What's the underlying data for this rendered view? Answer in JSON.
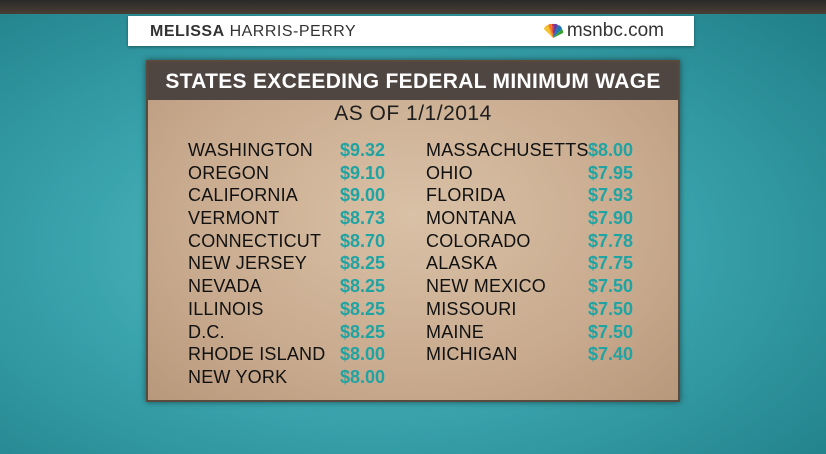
{
  "banner": {
    "show_first": "MELISSA",
    "show_last": "HARRIS-PERRY",
    "network": "msnbc.com"
  },
  "panel": {
    "title": "STATES EXCEEDING FEDERAL MINIMUM WAGE",
    "subtitle": "AS OF 1/1/2014",
    "left": [
      {
        "state": "WASHINGTON",
        "wage": "$9.32"
      },
      {
        "state": "OREGON",
        "wage": "$9.10"
      },
      {
        "state": "CALIFORNIA",
        "wage": "$9.00"
      },
      {
        "state": "VERMONT",
        "wage": "$8.73"
      },
      {
        "state": "CONNECTICUT",
        "wage": "$8.70"
      },
      {
        "state": "NEW JERSEY",
        "wage": "$8.25"
      },
      {
        "state": "NEVADA",
        "wage": "$8.25"
      },
      {
        "state": "ILLINOIS",
        "wage": "$8.25"
      },
      {
        "state": "D.C.",
        "wage": "$8.25"
      },
      {
        "state": "RHODE ISLAND",
        "wage": "$8.00"
      },
      {
        "state": "NEW YORK",
        "wage": "$8.00"
      }
    ],
    "right": [
      {
        "state": "MASSACHUSETTS",
        "wage": "$8.00"
      },
      {
        "state": "OHIO",
        "wage": "$7.95"
      },
      {
        "state": "FLORIDA",
        "wage": "$7.93"
      },
      {
        "state": "MONTANA",
        "wage": "$7.90"
      },
      {
        "state": "COLORADO",
        "wage": "$7.78"
      },
      {
        "state": "ALASKA",
        "wage": "$7.75"
      },
      {
        "state": "NEW MEXICO",
        "wage": "$7.50"
      },
      {
        "state": "MISSOURI",
        "wage": "$7.50"
      },
      {
        "state": "MAINE",
        "wage": "$7.50"
      },
      {
        "state": "MICHIGAN",
        "wage": "$7.40"
      }
    ]
  },
  "colors": {
    "wage": "#1fa3a3",
    "title_bar": "#4f4541",
    "panel": "#c9ab8f",
    "background": "#3aa4ad"
  },
  "icons": {
    "network_logo": "peacock-icon"
  }
}
